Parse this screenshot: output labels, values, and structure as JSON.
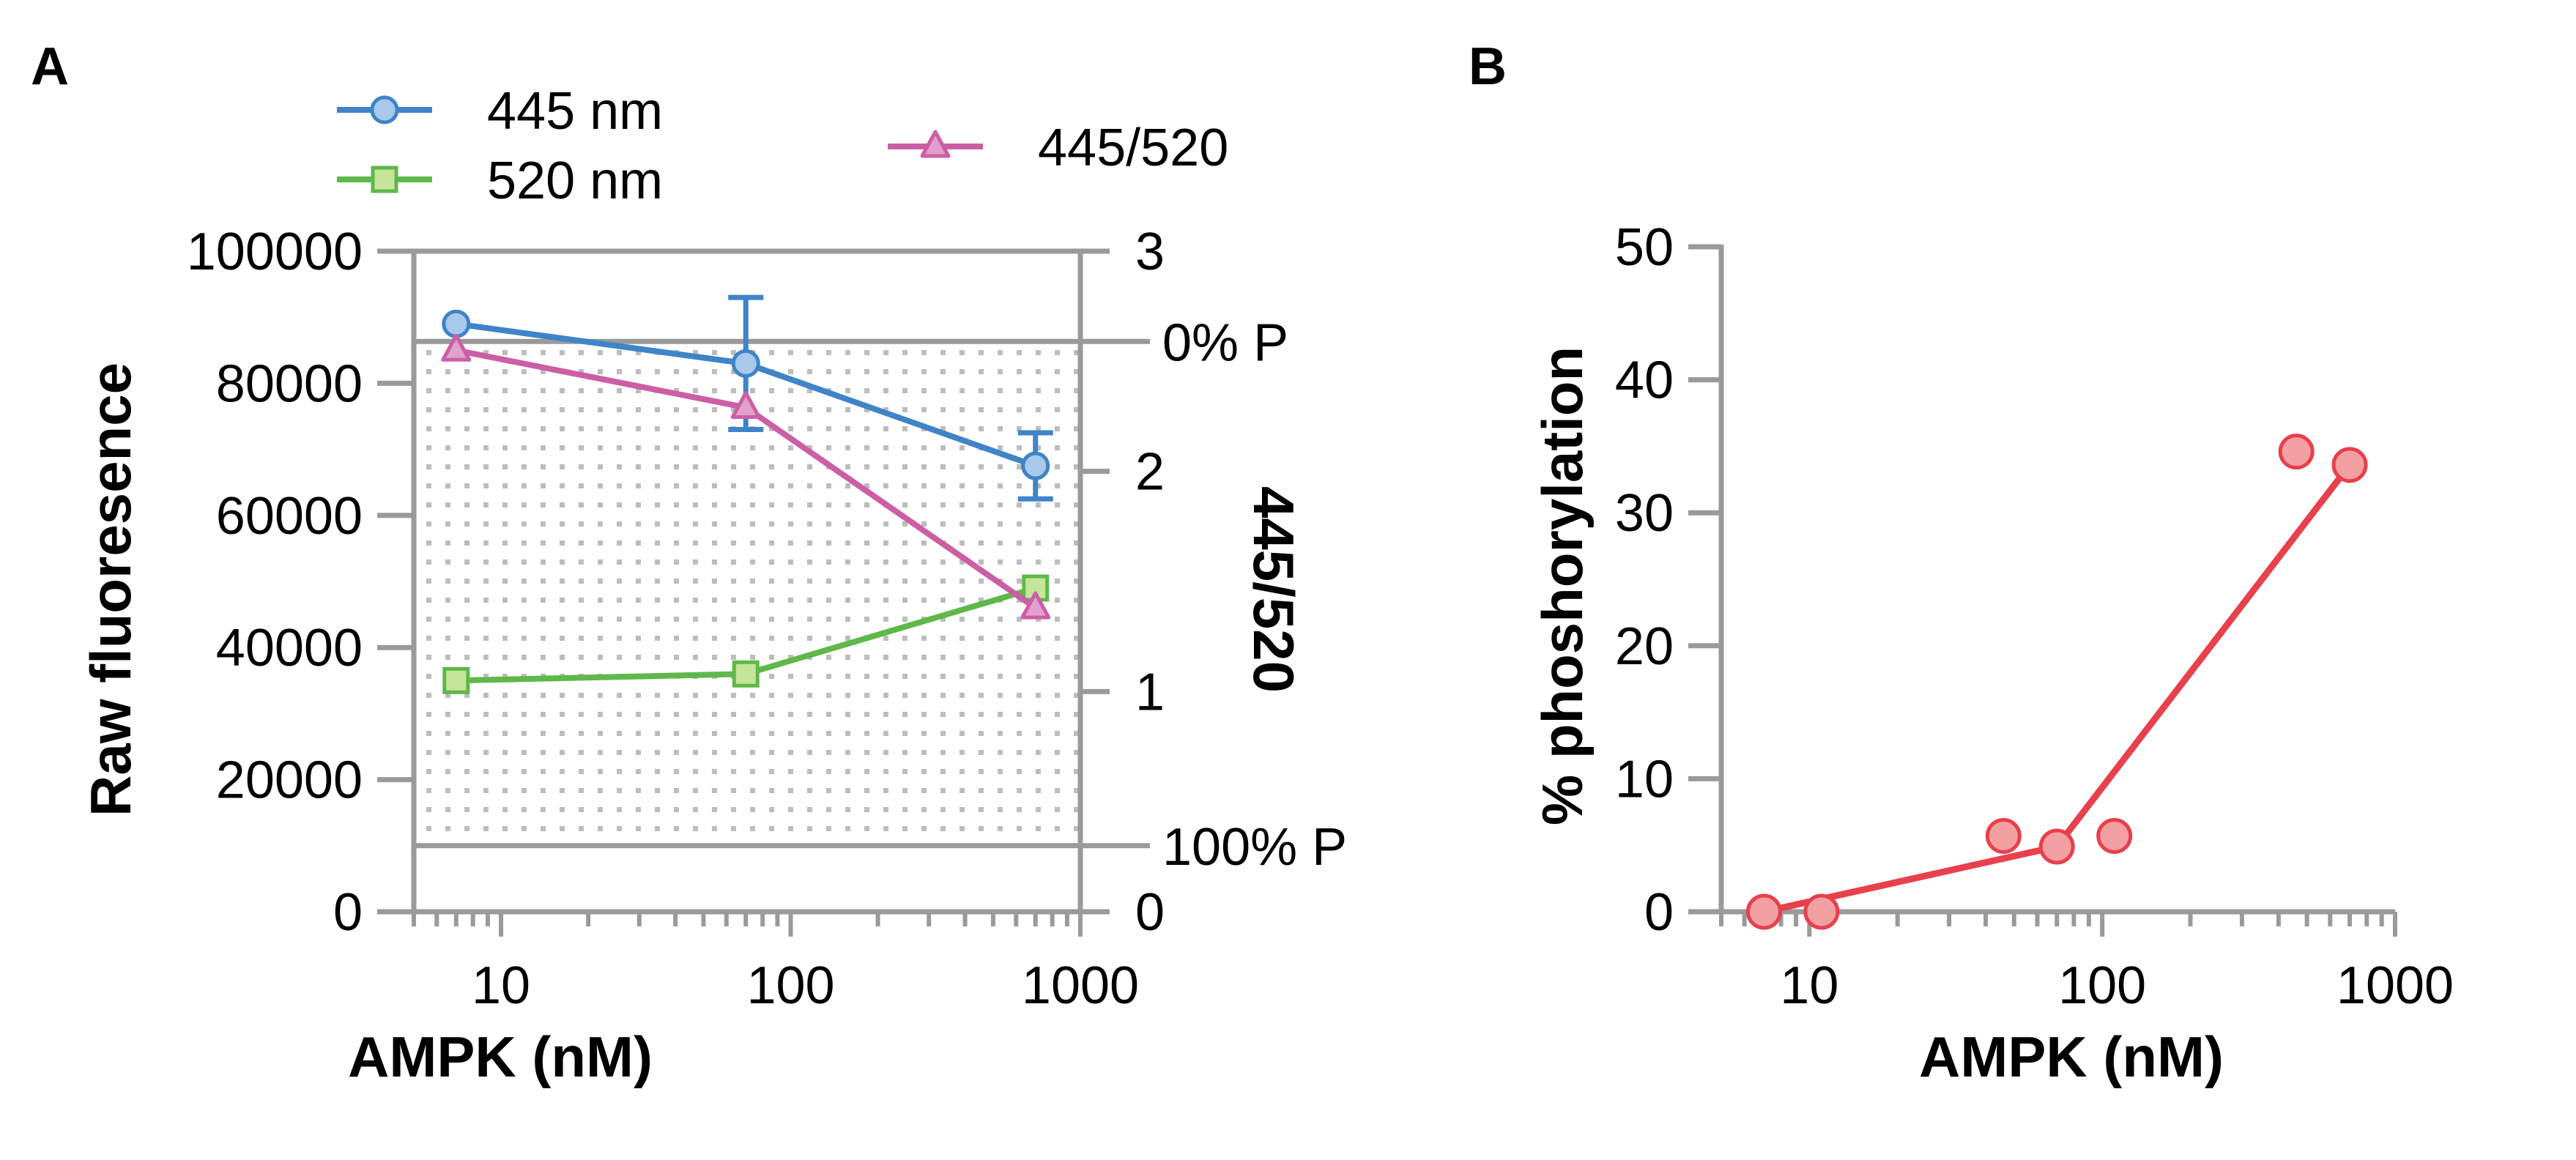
{
  "colors": {
    "axis": "#9a9a9a",
    "blue": "#3f84c8",
    "blue_fill": "#a9c9ea",
    "green": "#5fb84a",
    "green_fill": "#c5e59a",
    "pink": "#cc5ea6",
    "pink_fill": "#e2a0cc",
    "red": "#e8404c",
    "red_fill": "#f3a0a3",
    "stipple": "#bdbdbd"
  },
  "chart_data": [
    {
      "panel_label": "A",
      "type": "line",
      "xscale": "log",
      "xlim": [
        5,
        1000
      ],
      "xlabel": "AMPK (nM)",
      "xticks": [
        10,
        100,
        1000
      ],
      "xtick_labels": [
        "10",
        "100",
        "1000"
      ],
      "ylabel": "Raw fluoresence",
      "ylim": [
        0,
        100000
      ],
      "yticks": [
        0,
        20000,
        40000,
        60000,
        80000,
        100000
      ],
      "ytick_labels": [
        "0",
        "20000",
        "40000",
        "60000",
        "80000",
        "100000"
      ],
      "y2label": "445/520",
      "y2lim": [
        0,
        3
      ],
      "y2ticks": [
        0,
        1,
        2,
        3
      ],
      "y2tick_labels": [
        "0",
        "1",
        "2",
        "3"
      ],
      "reference_lines": [
        {
          "label": "0% P",
          "y2": 2.59
        },
        {
          "label": "100% P",
          "y2": 0.3
        }
      ],
      "legend_position": "top",
      "series": [
        {
          "name": "445 nm",
          "axis": "left",
          "marker": "circle",
          "color_key": "blue",
          "x": [
            7,
            70,
            700
          ],
          "y": [
            89000,
            83000,
            67500
          ],
          "error": [
            null,
            10000,
            5000
          ]
        },
        {
          "name": "520 nm",
          "axis": "left",
          "marker": "square",
          "color_key": "green",
          "x": [
            7,
            70,
            700
          ],
          "y": [
            35000,
            36000,
            49000
          ],
          "error": [
            null,
            null,
            null
          ]
        },
        {
          "name": "445/520",
          "axis": "right",
          "marker": "triangle",
          "color_key": "pink",
          "x": [
            7,
            70,
            700
          ],
          "y": [
            2.55,
            2.29,
            1.38
          ],
          "error": [
            null,
            null,
            null
          ]
        }
      ]
    },
    {
      "panel_label": "B",
      "type": "scatter",
      "xscale": "log",
      "xlim": [
        5,
        1000
      ],
      "xlabel": "AMPK (nM)",
      "xticks": [
        10,
        100,
        1000
      ],
      "xtick_labels": [
        "10",
        "100",
        "1000"
      ],
      "ylabel": "% phoshorylation",
      "ylim": [
        0,
        50
      ],
      "yticks": [
        0,
        10,
        20,
        30,
        40,
        50
      ],
      "ytick_labels": [
        "0",
        "10",
        "20",
        "30",
        "40",
        "50"
      ],
      "points": {
        "x": [
          7,
          11,
          46,
          70,
          110,
          460,
          700
        ],
        "y": [
          0,
          0,
          5.7,
          4.9,
          5.7,
          34.6,
          33.6
        ]
      },
      "line": {
        "x": [
          7,
          70,
          700
        ],
        "y": [
          0,
          4.9,
          33.6
        ]
      }
    }
  ]
}
